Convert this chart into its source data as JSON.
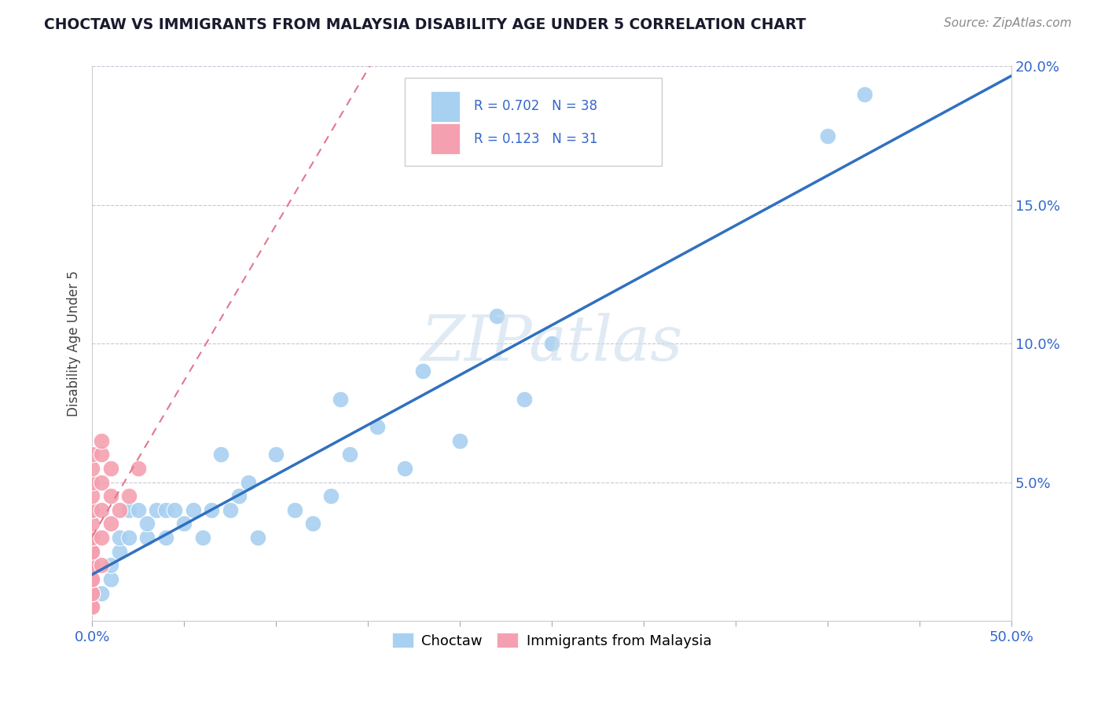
{
  "title": "CHOCTAW VS IMMIGRANTS FROM MALAYSIA DISABILITY AGE UNDER 5 CORRELATION CHART",
  "source_text": "Source: ZipAtlas.com",
  "ylabel": "Disability Age Under 5",
  "xlim": [
    0.0,
    0.5
  ],
  "ylim": [
    0.0,
    0.2
  ],
  "xtick_positions": [
    0.0,
    0.05,
    0.1,
    0.15,
    0.2,
    0.25,
    0.3,
    0.35,
    0.4,
    0.45,
    0.5
  ],
  "ytick_positions": [
    0.0,
    0.05,
    0.1,
    0.15,
    0.2
  ],
  "xtick_labels": [
    "0.0%",
    "",
    "",
    "",
    "",
    "",
    "",
    "",
    "",
    "",
    "50.0%"
  ],
  "ytick_labels": [
    "",
    "5.0%",
    "10.0%",
    "15.0%",
    "20.0%"
  ],
  "watermark": "ZIPatlas",
  "legend_r1_val": "0.702",
  "legend_n1_val": "38",
  "legend_r2_val": "0.123",
  "legend_n2_val": "31",
  "blue_color": "#a8d0f0",
  "pink_color": "#f5a0b0",
  "line_blue": "#3070c0",
  "line_pink": "#e07890",
  "choctaw_x": [
    0.005,
    0.01,
    0.01,
    0.015,
    0.015,
    0.02,
    0.02,
    0.025,
    0.03,
    0.03,
    0.035,
    0.04,
    0.04,
    0.045,
    0.05,
    0.055,
    0.06,
    0.065,
    0.07,
    0.075,
    0.08,
    0.085,
    0.09,
    0.1,
    0.11,
    0.12,
    0.13,
    0.135,
    0.14,
    0.155,
    0.17,
    0.18,
    0.2,
    0.22,
    0.235,
    0.25,
    0.4,
    0.42
  ],
  "choctaw_y": [
    0.01,
    0.015,
    0.02,
    0.025,
    0.03,
    0.03,
    0.04,
    0.04,
    0.03,
    0.035,
    0.04,
    0.03,
    0.04,
    0.04,
    0.035,
    0.04,
    0.03,
    0.04,
    0.06,
    0.04,
    0.045,
    0.05,
    0.03,
    0.06,
    0.04,
    0.035,
    0.045,
    0.08,
    0.06,
    0.07,
    0.055,
    0.09,
    0.065,
    0.11,
    0.08,
    0.1,
    0.175,
    0.19
  ],
  "malaysia_x": [
    0.0,
    0.0,
    0.0,
    0.0,
    0.0,
    0.0,
    0.0,
    0.0,
    0.0,
    0.0,
    0.0,
    0.0,
    0.0,
    0.0,
    0.0,
    0.0,
    0.0,
    0.0,
    0.0,
    0.005,
    0.005,
    0.005,
    0.005,
    0.005,
    0.005,
    0.01,
    0.01,
    0.01,
    0.015,
    0.02,
    0.025
  ],
  "malaysia_y": [
    0.005,
    0.005,
    0.01,
    0.01,
    0.015,
    0.015,
    0.02,
    0.02,
    0.025,
    0.025,
    0.03,
    0.03,
    0.035,
    0.04,
    0.04,
    0.045,
    0.05,
    0.055,
    0.06,
    0.02,
    0.03,
    0.04,
    0.05,
    0.06,
    0.065,
    0.035,
    0.045,
    0.055,
    0.04,
    0.045,
    0.055
  ]
}
